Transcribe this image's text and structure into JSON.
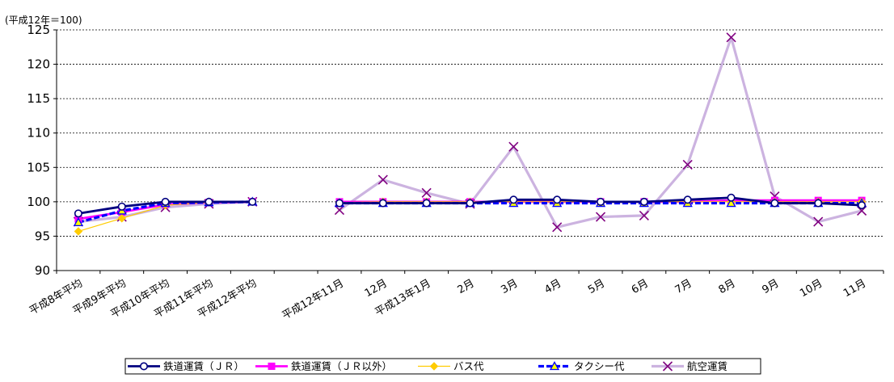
{
  "chart_data": {
    "type": "line",
    "unit_label": "(平成12年＝100)",
    "ylim": [
      90,
      125
    ],
    "yticks": [
      90,
      95,
      100,
      105,
      110,
      115,
      120,
      125
    ],
    "grid": true,
    "legend_position": "bottom",
    "categories": [
      "平成8年平均",
      "平成9年平均",
      "平成10年平均",
      "平成11年平均",
      "平成12年平均",
      "",
      "平成12年11月",
      "12月",
      "平成13年1月",
      "2月",
      "3月",
      "4月",
      "5月",
      "6月",
      "7月",
      "8月",
      "9月",
      "10月",
      "11月"
    ],
    "series": [
      {
        "name": "鉄道運賃（ＪＲ）",
        "color": "#000080",
        "marker": "circle",
        "values": [
          98.3,
          99.3,
          100.0,
          100.0,
          100.0,
          null,
          99.8,
          99.8,
          99.8,
          99.8,
          100.3,
          100.3,
          100.0,
          100.0,
          100.3,
          100.6,
          99.8,
          99.8,
          99.5
        ]
      },
      {
        "name": "鉄道運賃（ＪＲ以外）",
        "color": "#ff00ff",
        "marker": "square",
        "values": [
          97.5,
          98.5,
          99.6,
          99.9,
          100.0,
          null,
          100.0,
          100.0,
          100.0,
          100.0,
          100.0,
          100.0,
          100.0,
          100.0,
          100.0,
          100.2,
          100.2,
          100.2,
          100.2
        ]
      },
      {
        "name": "バス代",
        "color": "#ffcc00",
        "marker": "diamond",
        "values": [
          95.7,
          97.6,
          99.5,
          99.9,
          100.0,
          null,
          99.9,
          100.0,
          100.0,
          100.0,
          100.0,
          100.0,
          100.0,
          100.0,
          100.0,
          100.0,
          100.0,
          100.0,
          100.0
        ]
      },
      {
        "name": "タクシー代",
        "color": "#0000ff",
        "marker": "triangle",
        "values": [
          97.0,
          98.7,
          99.8,
          99.9,
          100.0,
          null,
          99.8,
          99.8,
          99.8,
          99.8,
          99.8,
          99.8,
          99.8,
          99.8,
          99.8,
          99.8,
          99.8,
          99.8,
          99.8
        ]
      },
      {
        "name": "航空運賃",
        "color": "#ccb3e0",
        "marker": "x",
        "values": [
          97.1,
          97.8,
          99.2,
          99.7,
          100.0,
          null,
          98.8,
          103.2,
          101.3,
          99.7,
          108.0,
          96.3,
          97.8,
          98.0,
          105.4,
          123.9,
          100.8,
          97.1,
          98.7
        ]
      }
    ]
  }
}
